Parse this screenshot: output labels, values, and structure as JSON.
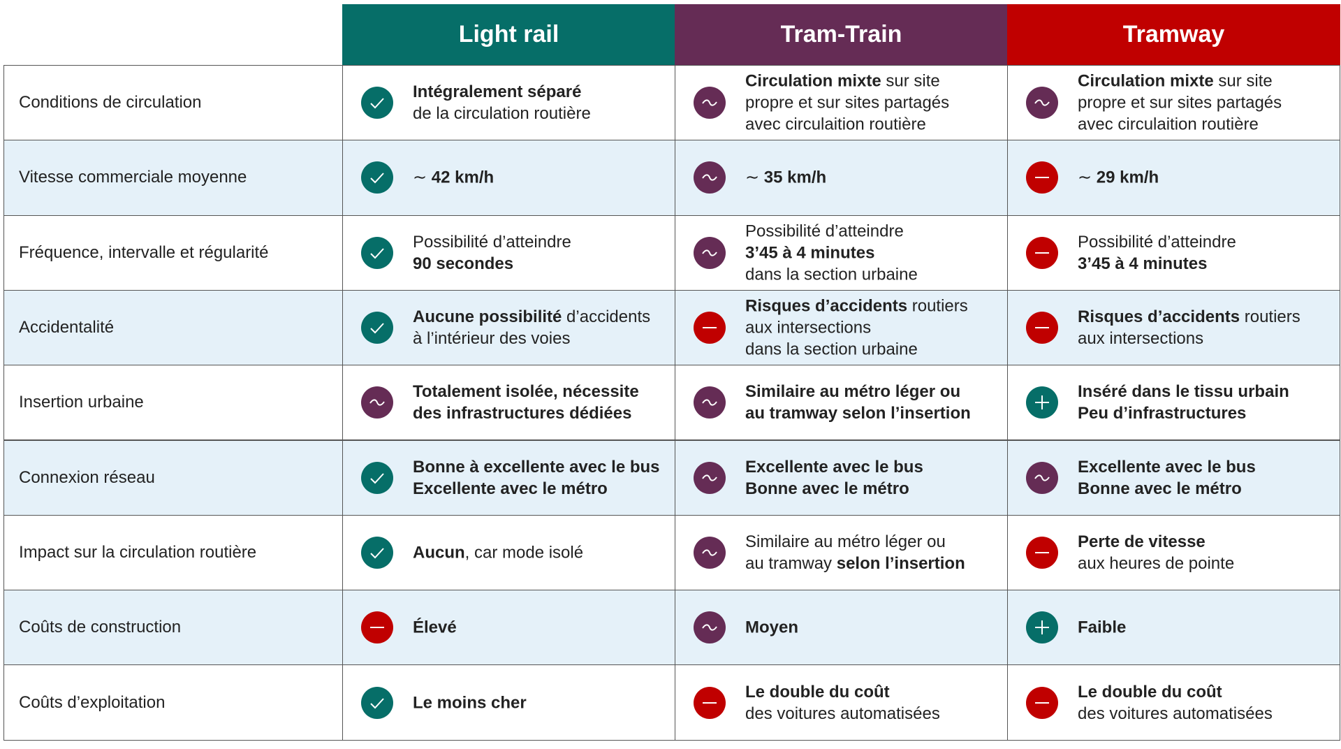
{
  "columns": [
    {
      "name": "Light rail",
      "color": "#066e68"
    },
    {
      "name": "Tram-Train",
      "color": "#652c55"
    },
    {
      "name": "Tramway",
      "color": "#c00000"
    }
  ],
  "rows": [
    {
      "label": "Conditions de circulation",
      "cells": [
        {
          "icon": "check",
          "lines": [
            [
              {
                "text": "Intégralement séparé",
                "bold": true
              }
            ],
            [
              {
                "text": "de la circulation routière"
              }
            ]
          ]
        },
        {
          "icon": "tilde",
          "lines": [
            [
              {
                "text": "Circulation mixte",
                "bold": true
              },
              {
                "text": " sur site"
              }
            ],
            [
              {
                "text": "propre et sur sites partagés"
              }
            ],
            [
              {
                "text": "avec circulaition routière"
              }
            ]
          ]
        },
        {
          "icon": "tilde",
          "lines": [
            [
              {
                "text": "Circulation mixte",
                "bold": true
              },
              {
                "text": " sur site"
              }
            ],
            [
              {
                "text": "propre et sur sites partagés"
              }
            ],
            [
              {
                "text": "avec circulaition routière"
              }
            ]
          ]
        }
      ]
    },
    {
      "label": "Vitesse commerciale moyenne",
      "cells": [
        {
          "icon": "check",
          "lines": [
            [
              {
                "text": "∼ "
              },
              {
                "text": "42 km/h",
                "bold": true
              }
            ]
          ]
        },
        {
          "icon": "tilde",
          "lines": [
            [
              {
                "text": "∼ "
              },
              {
                "text": "35 km/h",
                "bold": true
              }
            ]
          ]
        },
        {
          "icon": "minus",
          "lines": [
            [
              {
                "text": "∼ "
              },
              {
                "text": "29 km/h",
                "bold": true
              }
            ]
          ]
        }
      ]
    },
    {
      "label": "Fréquence, intervalle et régularité",
      "cells": [
        {
          "icon": "check",
          "lines": [
            [
              {
                "text": "Possibilité d’atteindre"
              }
            ],
            [
              {
                "text": "90 secondes",
                "bold": true
              }
            ]
          ]
        },
        {
          "icon": "tilde",
          "lines": [
            [
              {
                "text": "Possibilité d’atteindre"
              }
            ],
            [
              {
                "text": "3’45 à 4 minutes",
                "bold": true
              }
            ],
            [
              {
                "text": "dans la section urbaine"
              }
            ]
          ]
        },
        {
          "icon": "minus",
          "lines": [
            [
              {
                "text": "Possibilité d’atteindre"
              }
            ],
            [
              {
                "text": "3’45 à 4 minutes",
                "bold": true
              }
            ]
          ]
        }
      ]
    },
    {
      "label": "Accidentalité",
      "cells": [
        {
          "icon": "check",
          "lines": [
            [
              {
                "text": "Aucune possibilité",
                "bold": true
              },
              {
                "text": " d’accidents"
              }
            ],
            [
              {
                "text": "à l’intérieur des voies"
              }
            ]
          ]
        },
        {
          "icon": "minus",
          "lines": [
            [
              {
                "text": "Risques d’accidents",
                "bold": true
              },
              {
                "text": " routiers"
              }
            ],
            [
              {
                "text": "aux intersections"
              }
            ],
            [
              {
                "text": "dans la section urbaine"
              }
            ]
          ]
        },
        {
          "icon": "minus",
          "lines": [
            [
              {
                "text": "Risques d’accidents",
                "bold": true
              },
              {
                "text": " routiers"
              }
            ],
            [
              {
                "text": "aux intersections"
              }
            ]
          ]
        }
      ]
    },
    {
      "label": "Insertion urbaine",
      "cells": [
        {
          "icon": "tilde",
          "lines": [
            [
              {
                "text": "Totalement isolée, nécessite",
                "bold": true
              }
            ],
            [
              {
                "text": "des infrastructures dédiées",
                "bold": true
              }
            ]
          ]
        },
        {
          "icon": "tilde",
          "lines": [
            [
              {
                "text": "Similaire au métro léger ou",
                "bold": true
              }
            ],
            [
              {
                "text": "au tramway selon l’insertion",
                "bold": true
              }
            ]
          ]
        },
        {
          "icon": "plus",
          "lines": [
            [
              {
                "text": "Inséré dans le tissu urbain",
                "bold": true
              }
            ],
            [
              {
                "text": "Peu d’infrastructures",
                "bold": true
              }
            ]
          ]
        }
      ]
    },
    {
      "label": "Connexion réseau",
      "cells": [
        {
          "icon": "check",
          "lines": [
            [
              {
                "text": "Bonne à excellente avec le bus",
                "bold": true
              }
            ],
            [
              {
                "text": "Excellente avec le métro",
                "bold": true
              }
            ]
          ]
        },
        {
          "icon": "tilde",
          "lines": [
            [
              {
                "text": "Excellente avec le bus",
                "bold": true
              }
            ],
            [
              {
                "text": "Bonne avec le métro",
                "bold": true
              }
            ]
          ]
        },
        {
          "icon": "tilde",
          "lines": [
            [
              {
                "text": "Excellente avec le bus",
                "bold": true
              }
            ],
            [
              {
                "text": "Bonne avec le métro",
                "bold": true
              }
            ]
          ]
        }
      ]
    },
    {
      "label": "Impact sur la circulation routière",
      "cells": [
        {
          "icon": "check",
          "lines": [
            [
              {
                "text": "Aucun",
                "bold": true
              },
              {
                "text": ", car mode isolé"
              }
            ]
          ]
        },
        {
          "icon": "tilde",
          "lines": [
            [
              {
                "text": "Similaire au métro léger ou"
              }
            ],
            [
              {
                "text": "au tramway "
              },
              {
                "text": "selon l’insertion",
                "bold": true
              }
            ]
          ]
        },
        {
          "icon": "minus",
          "lines": [
            [
              {
                "text": "Perte de vitesse",
                "bold": true
              }
            ],
            [
              {
                "text": "aux heures de pointe"
              }
            ]
          ]
        }
      ]
    },
    {
      "label": "Coûts de construction",
      "cells": [
        {
          "icon": "minus",
          "lines": [
            [
              {
                "text": "Élevé",
                "bold": true
              }
            ]
          ]
        },
        {
          "icon": "tilde",
          "lines": [
            [
              {
                "text": "Moyen",
                "bold": true
              }
            ]
          ]
        },
        {
          "icon": "plus",
          "lines": [
            [
              {
                "text": "Faible",
                "bold": true
              }
            ]
          ]
        }
      ]
    },
    {
      "label": "Coûts d’exploitation",
      "cells": [
        {
          "icon": "check",
          "lines": [
            [
              {
                "text": "Le moins cher",
                "bold": true
              }
            ]
          ]
        },
        {
          "icon": "minus",
          "lines": [
            [
              {
                "text": "Le double du coût",
                "bold": true
              }
            ],
            [
              {
                "text": "des voitures automatisées"
              }
            ]
          ]
        },
        {
          "icon": "minus",
          "lines": [
            [
              {
                "text": "Le double du coût",
                "bold": true
              }
            ],
            [
              {
                "text": "des voitures automatisées"
              }
            ]
          ]
        }
      ]
    }
  ]
}
